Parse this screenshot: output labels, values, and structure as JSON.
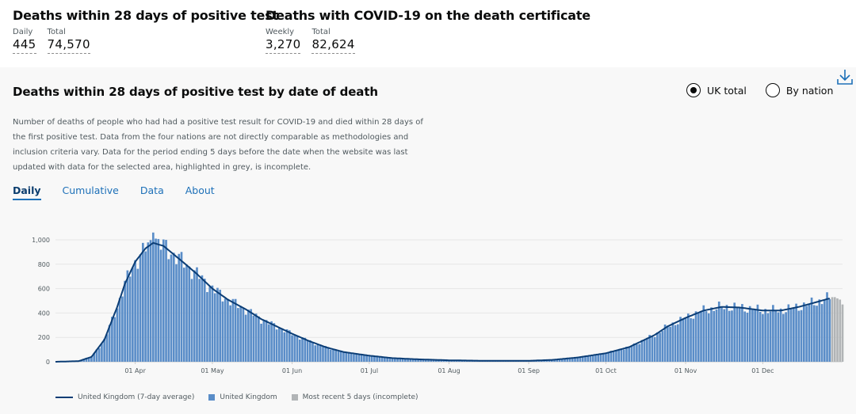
{
  "header": {
    "left": {
      "title": "Deaths within 28 days of positive test",
      "daily_label": "Daily",
      "daily_value": "445",
      "total_label": "Total",
      "total_value": "74,570"
    },
    "right": {
      "title": "Deaths with COVID-19 on the death certificate",
      "weekly_label": "Weekly",
      "weekly_value": "3,270",
      "total_label": "Total",
      "total_value": "82,624"
    }
  },
  "card": {
    "title": "Deaths within 28 days of positive test by date of death",
    "radio": {
      "uk_total": "UK total",
      "by_nation": "By nation",
      "selected": "uk_total"
    },
    "description": "Number of deaths of people who had had a positive test result for COVID-19 and died within 28 days of the first positive test. Data from the four nations are not directly comparable as methodologies and inclusion criteria vary. Data for the period ending 5 days before the date when the website was last updated with data for the selected area, highlighted in grey, is incomplete.",
    "tabs": [
      "Daily",
      "Cumulative",
      "Data",
      "About"
    ],
    "active_tab": "Daily"
  },
  "colors": {
    "bar": "#5a8dc8",
    "line": "#0b3d75",
    "incomplete": "#b1b4b6",
    "link": "#1d70b8"
  },
  "chart_data": {
    "type": "bar",
    "title": "Deaths within 28 days of positive test by date of death",
    "xlabel": "",
    "ylabel": "",
    "ylim": [
      0,
      1000
    ],
    "y_ticks": [
      "0",
      "200",
      "400",
      "600",
      "800",
      "1,000"
    ],
    "x_ticks": [
      "01 Apr",
      "01 May",
      "01 Jun",
      "01 Jul",
      "01 Aug",
      "01 Sep",
      "01 Oct",
      "01 Nov",
      "01 Dec"
    ],
    "series": [
      {
        "name": "United Kingdom (7-day average)",
        "type": "line",
        "points": [
          [
            "01 Mar",
            0
          ],
          [
            "10 Mar",
            5
          ],
          [
            "15 Mar",
            40
          ],
          [
            "20 Mar",
            180
          ],
          [
            "25 Mar",
            450
          ],
          [
            "28 Mar",
            640
          ],
          [
            "01 Apr",
            820
          ],
          [
            "05 Apr",
            930
          ],
          [
            "08 Apr",
            975
          ],
          [
            "12 Apr",
            950
          ],
          [
            "16 Apr",
            880
          ],
          [
            "20 Apr",
            810
          ],
          [
            "25 Apr",
            720
          ],
          [
            "01 May",
            600
          ],
          [
            "07 May",
            510
          ],
          [
            "14 May",
            430
          ],
          [
            "20 May",
            350
          ],
          [
            "25 May",
            300
          ],
          [
            "01 Jun",
            230
          ],
          [
            "07 Jun",
            175
          ],
          [
            "14 Jun",
            120
          ],
          [
            "21 Jun",
            80
          ],
          [
            "01 Jul",
            50
          ],
          [
            "10 Jul",
            30
          ],
          [
            "20 Jul",
            20
          ],
          [
            "01 Aug",
            12
          ],
          [
            "15 Aug",
            8
          ],
          [
            "01 Sep",
            8
          ],
          [
            "10 Sep",
            15
          ],
          [
            "20 Sep",
            35
          ],
          [
            "01 Oct",
            70
          ],
          [
            "10 Oct",
            120
          ],
          [
            "20 Oct",
            220
          ],
          [
            "25 Oct",
            290
          ],
          [
            "01 Nov",
            360
          ],
          [
            "08 Nov",
            420
          ],
          [
            "15 Nov",
            450
          ],
          [
            "22 Nov",
            445
          ],
          [
            "01 Dec",
            420
          ],
          [
            "08 Dec",
            420
          ],
          [
            "15 Dec",
            450
          ],
          [
            "22 Dec",
            490
          ],
          [
            "27 Dec",
            520
          ]
        ]
      },
      {
        "name": "United Kingdom",
        "type": "bar",
        "description": "Daily deaths — closely follows the 7-day average, peak ~1,060 around 08 Apr"
      },
      {
        "name": "Most recent 5 days (incomplete)",
        "type": "bar",
        "values": [
          530,
          530,
          520,
          510,
          470
        ]
      }
    ]
  },
  "legend": {
    "avg": "United Kingdom (7-day average)",
    "daily": "United Kingdom",
    "incomplete": "Most recent 5 days (incomplete)"
  }
}
